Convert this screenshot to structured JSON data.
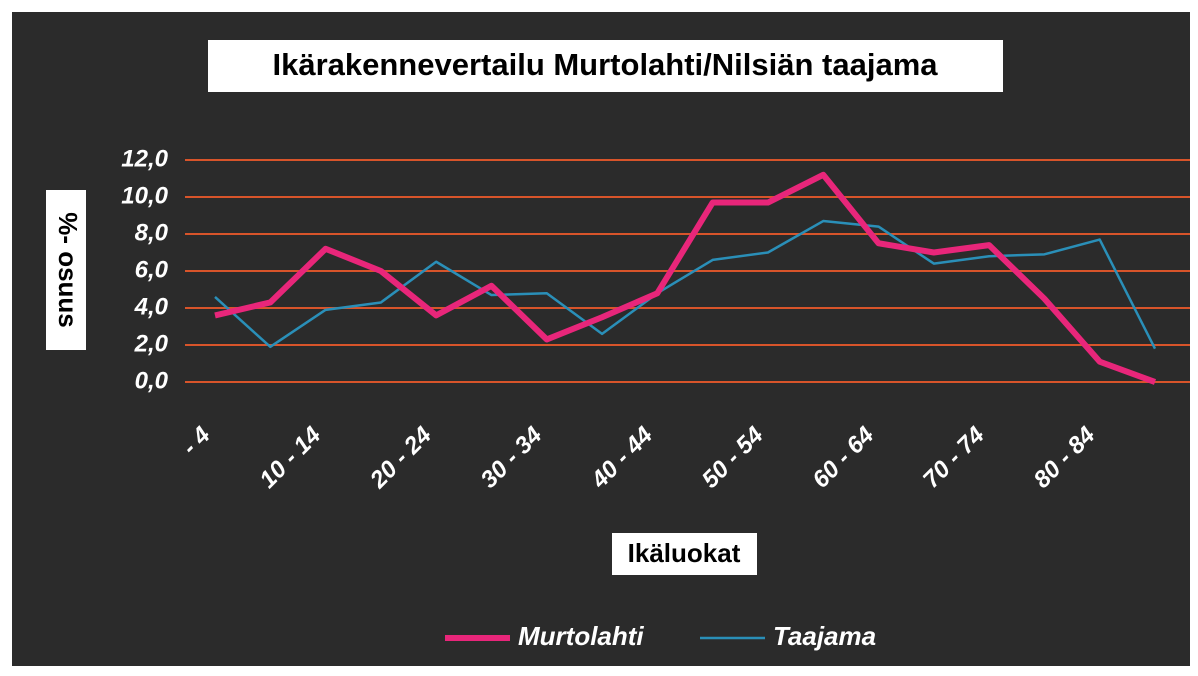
{
  "chart_data": {
    "type": "line",
    "title": "Ikärakennevertailu Murtolahti/Nilsiän taajama",
    "x_label": "Ikäluokat",
    "y_label": "%- osuus",
    "categories": [
      "- 4",
      null,
      "10 - 14",
      null,
      "20 - 24",
      null,
      "30 - 34",
      null,
      "40 - 44",
      null,
      "50 - 54",
      null,
      "60 - 64",
      null,
      "70 - 74",
      null,
      "80 - 84",
      null
    ],
    "series": [
      {
        "name": "Murtolahti",
        "color": "#e8267a",
        "values": [
          3.6,
          4.3,
          7.2,
          6.0,
          3.6,
          5.2,
          2.3,
          3.5,
          4.8,
          9.7,
          9.7,
          11.2,
          7.5,
          7.0,
          7.4,
          4.5,
          1.1,
          0.0
        ]
      },
      {
        "name": "Taajama",
        "color": "#2a8fb8",
        "values": [
          4.6,
          1.9,
          3.9,
          4.3,
          6.5,
          4.7,
          4.8,
          2.6,
          4.8,
          6.6,
          7.0,
          8.7,
          8.4,
          6.4,
          6.8,
          6.9,
          7.7,
          1.8
        ]
      }
    ],
    "ylim": [
      0,
      12
    ],
    "yticks": [
      {
        "value": 0,
        "label": "0,0"
      },
      {
        "value": 2,
        "label": "2,0"
      },
      {
        "value": 4,
        "label": "4,0"
      },
      {
        "value": 6,
        "label": "6,0"
      },
      {
        "value": 8,
        "label": "8,0"
      },
      {
        "value": 10,
        "label": "10,0"
      },
      {
        "value": 12,
        "label": "12,0"
      }
    ],
    "grid": true,
    "grid_color": "#d8542a",
    "legend": "bottom"
  }
}
